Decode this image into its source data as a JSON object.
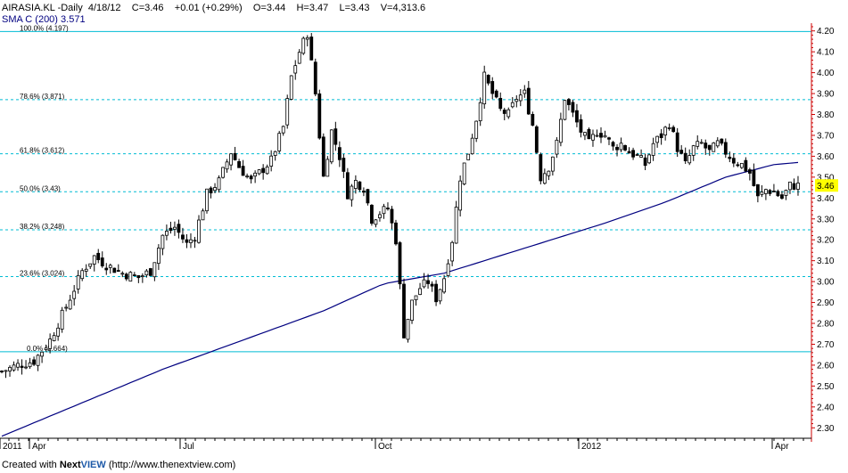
{
  "header": {
    "symbol": "AIRASIA.KL",
    "period": "-Daily",
    "date": "4/18/12",
    "close": "C=3.46",
    "change": "+0.01 (+0.29%)",
    "open": "O=3.44",
    "high": "H=3.47",
    "low": "L=3.43",
    "volume": "V=4,313.6",
    "sma_label": "SMA C (200)",
    "sma_value": "3.571"
  },
  "footer": {
    "prefix": "Created with ",
    "brand_a": "Next",
    "brand_b": "VIEW",
    "url": " (http://www.thenextview.com)"
  },
  "colors": {
    "candle": "#000000",
    "sma": "#000080",
    "fib_line": "#00bcd4",
    "price_axis": "#cc0000",
    "last_price_bg": "#ffff00"
  },
  "chart_data": {
    "type": "candlestick",
    "ylim": [
      2.25,
      4.22
    ],
    "y_ticks": [
      2.3,
      2.4,
      2.5,
      2.6,
      2.7,
      2.8,
      2.9,
      3.0,
      3.1,
      3.2,
      3.3,
      3.4,
      3.5,
      3.6,
      3.7,
      3.8,
      3.9,
      4.0,
      4.1,
      4.2
    ],
    "y_tick_labels": [
      "2.30",
      "2.40",
      "2.50",
      "2.60",
      "2.70",
      "2.80",
      "2.90",
      "3.00",
      "3.10",
      "3.20",
      "3.30",
      "3.40",
      "3.50",
      "3.60",
      "3.70",
      "3.80",
      "3.90",
      "4.00",
      "4.10",
      "4.20"
    ],
    "last_price": "3.46",
    "x_labels": [
      "2011",
      "Apr",
      "Jul",
      "Oct",
      "2012",
      "Apr"
    ],
    "fib_levels": [
      {
        "label": "100.0% (4.197)",
        "value": 4.197
      },
      {
        "label": "78.6% (3.871)",
        "value": 3.871
      },
      {
        "label": "61.8% (3.612)",
        "value": 3.612
      },
      {
        "label": "50.0% (3.43)",
        "value": 3.43
      },
      {
        "label": "38.2% (3.248)",
        "value": 3.248
      },
      {
        "label": "23.6% (3.024)",
        "value": 3.024
      },
      {
        "label": "0.0% (2.664)",
        "value": 2.664
      }
    ],
    "close_path": [
      [
        0,
        2.57
      ],
      [
        4,
        2.6
      ],
      [
        8,
        2.62
      ],
      [
        12,
        2.72
      ],
      [
        16,
        2.88
      ],
      [
        20,
        3.05
      ],
      [
        23,
        3.12
      ],
      [
        26,
        3.08
      ],
      [
        30,
        3.04
      ],
      [
        34,
        3.02
      ],
      [
        37,
        3.05
      ],
      [
        40,
        3.22
      ],
      [
        43,
        3.26
      ],
      [
        46,
        3.18
      ],
      [
        48,
        3.22
      ],
      [
        51,
        3.42
      ],
      [
        54,
        3.48
      ],
      [
        57,
        3.62
      ],
      [
        59,
        3.55
      ],
      [
        62,
        3.48
      ],
      [
        64,
        3.52
      ],
      [
        67,
        3.58
      ],
      [
        70,
        3.74
      ],
      [
        72,
        3.98
      ],
      [
        74,
        4.1
      ],
      [
        76,
        4.19
      ],
      [
        78,
        3.9
      ],
      [
        80,
        3.5
      ],
      [
        82,
        3.72
      ],
      [
        84,
        3.6
      ],
      [
        86,
        3.42
      ],
      [
        88,
        3.48
      ],
      [
        90,
        3.45
      ],
      [
        92,
        3.3
      ],
      [
        94,
        3.33
      ],
      [
        96,
        3.35
      ],
      [
        98,
        3.2
      ],
      [
        100,
        2.75
      ],
      [
        102,
        2.9
      ],
      [
        104,
        2.97
      ],
      [
        106,
        3.0
      ],
      [
        108,
        2.92
      ],
      [
        110,
        3.02
      ],
      [
        112,
        3.2
      ],
      [
        114,
        3.5
      ],
      [
        116,
        3.62
      ],
      [
        118,
        3.78
      ],
      [
        120,
        3.98
      ],
      [
        122,
        3.9
      ],
      [
        124,
        3.82
      ],
      [
        126,
        3.8
      ],
      [
        128,
        3.88
      ],
      [
        130,
        3.9
      ],
      [
        132,
        3.75
      ],
      [
        134,
        3.5
      ],
      [
        136,
        3.55
      ],
      [
        138,
        3.66
      ],
      [
        140,
        3.88
      ],
      [
        142,
        3.8
      ],
      [
        144,
        3.72
      ],
      [
        146,
        3.66
      ],
      [
        148,
        3.72
      ],
      [
        150,
        3.7
      ],
      [
        152,
        3.64
      ],
      [
        154,
        3.66
      ],
      [
        156,
        3.62
      ],
      [
        158,
        3.6
      ],
      [
        160,
        3.56
      ],
      [
        162,
        3.66
      ],
      [
        164,
        3.7
      ],
      [
        166,
        3.76
      ],
      [
        168,
        3.64
      ],
      [
        170,
        3.56
      ],
      [
        172,
        3.64
      ],
      [
        174,
        3.66
      ],
      [
        176,
        3.62
      ],
      [
        178,
        3.66
      ],
      [
        180,
        3.62
      ],
      [
        182,
        3.58
      ],
      [
        184,
        3.56
      ],
      [
        186,
        3.52
      ],
      [
        188,
        3.4
      ],
      [
        190,
        3.44
      ],
      [
        192,
        3.43
      ],
      [
        194,
        3.4
      ],
      [
        196,
        3.46
      ],
      [
        198,
        3.46
      ]
    ],
    "sma_path": [
      [
        0,
        2.26
      ],
      [
        20,
        2.42
      ],
      [
        40,
        2.58
      ],
      [
        60,
        2.72
      ],
      [
        80,
        2.86
      ],
      [
        95,
        2.99
      ],
      [
        110,
        3.04
      ],
      [
        130,
        3.16
      ],
      [
        150,
        3.28
      ],
      [
        165,
        3.38
      ],
      [
        180,
        3.5
      ],
      [
        192,
        3.56
      ],
      [
        198,
        3.57
      ]
    ]
  }
}
